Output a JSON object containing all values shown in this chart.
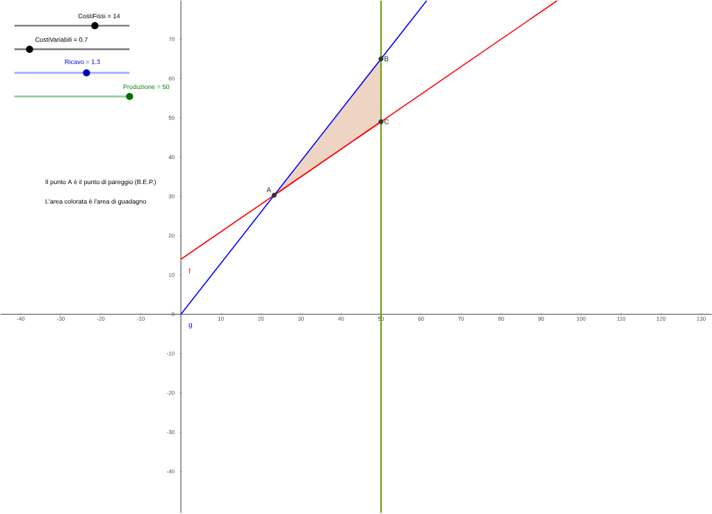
{
  "chart_data": {
    "type": "line",
    "xlim": [
      -45.1,
      132.6
    ],
    "ylim": [
      -50.5,
      79.8
    ],
    "xticks": [
      -40,
      -30,
      -20,
      -10,
      10,
      20,
      30,
      40,
      50,
      60,
      70,
      80,
      90,
      100,
      110,
      120,
      130
    ],
    "yticks": [
      -40,
      -30,
      -20,
      -10,
      0,
      10,
      20,
      30,
      40,
      50,
      60,
      70
    ],
    "annotations": [
      "CostiFissi = 14",
      "CostiVariabili = 0.7",
      "Ricavo = 1.3",
      "Produzione = 50",
      "Il punto A è il punto di pareggio (B.E.P.)",
      "L'area colorata è l'area di guadagno"
    ],
    "ref_lines": [
      {
        "axis": "x",
        "value": 50,
        "color": "#669900"
      }
    ],
    "series": [
      {
        "type": "line",
        "color": "#ff0000",
        "x": [
          23.3,
          50
        ],
        "values": [
          30.3,
          49
        ],
        "lower": [
          30.3,
          49
        ],
        "upper": [
          30.3,
          65
        ]
      },
      {
        "name": "f",
        "color": "#ff0000",
        "x": [
          0,
          94
        ],
        "values": [
          14,
          79.8
        ]
      },
      {
        "name": "g",
        "color": "#0000ff",
        "x": [
          0,
          61.4
        ],
        "values": [
          0,
          79.8
        ]
      },
      {
        "type": "scatter",
        "marker": "circle",
        "color": "#333333",
        "x": [
          23.3,
          50,
          50
        ],
        "values": [
          30.3,
          65,
          49
        ],
        "value_labels": [
          "A",
          "B",
          "C"
        ]
      }
    ]
  }
}
